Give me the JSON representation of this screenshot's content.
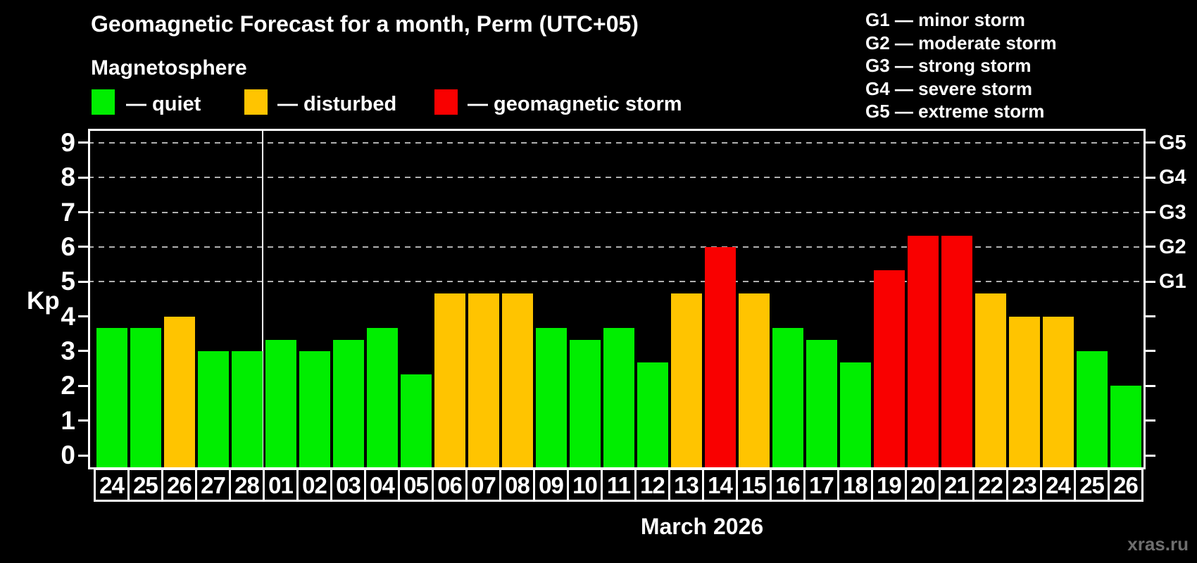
{
  "title": "Geomagnetic Forecast for a month, Perm (UTC+05)",
  "subtitle": "Magnetosphere",
  "legend": {
    "items": [
      {
        "label": "— quiet",
        "status": "quiet"
      },
      {
        "label": "— disturbed",
        "status": "disturbed"
      },
      {
        "label": "— geomagnetic storm",
        "status": "storm"
      }
    ]
  },
  "gscale": {
    "items": [
      "G1 — minor storm",
      "G2 — moderate storm",
      "G3 — strong storm",
      "G4 — severe storm",
      "G5 — extreme storm"
    ]
  },
  "chart_data": {
    "type": "bar",
    "title": "Geomagnetic Forecast for a month, Perm (UTC+05)",
    "ylabel": "Kp",
    "xlabel": "March 2026",
    "ylim": [
      0,
      9
    ],
    "yticks": [
      0,
      1,
      2,
      3,
      4,
      5,
      6,
      7,
      8,
      9
    ],
    "gridlines_kp": [
      5,
      6,
      7,
      8,
      9
    ],
    "grid": "dashed horizontal at Kp 5-9 only",
    "legend_position": "top",
    "right_axis": [
      {
        "kp": 5,
        "label": "G1"
      },
      {
        "kp": 6,
        "label": "G2"
      },
      {
        "kp": 7,
        "label": "G3"
      },
      {
        "kp": 8,
        "label": "G4"
      },
      {
        "kp": 9,
        "label": "G5"
      }
    ],
    "month_separator_index": 5,
    "categories": [
      "24",
      "25",
      "26",
      "27",
      "28",
      "01",
      "02",
      "03",
      "04",
      "05",
      "06",
      "07",
      "08",
      "09",
      "10",
      "11",
      "12",
      "13",
      "14",
      "15",
      "16",
      "17",
      "18",
      "19",
      "20",
      "21",
      "22",
      "23",
      "24",
      "25",
      "26"
    ],
    "values": [
      3.67,
      3.67,
      4.0,
      3.0,
      3.0,
      3.33,
      3.0,
      3.33,
      3.67,
      2.33,
      4.67,
      4.67,
      4.67,
      3.67,
      3.33,
      3.67,
      2.67,
      4.67,
      6.0,
      4.67,
      3.67,
      3.33,
      2.67,
      5.33,
      6.33,
      6.33,
      4.67,
      4.0,
      4.0,
      3.0,
      2.0
    ],
    "statuses": [
      "quiet",
      "quiet",
      "disturbed",
      "quiet",
      "quiet",
      "quiet",
      "quiet",
      "quiet",
      "quiet",
      "quiet",
      "disturbed",
      "disturbed",
      "disturbed",
      "quiet",
      "quiet",
      "quiet",
      "quiet",
      "disturbed",
      "storm",
      "disturbed",
      "quiet",
      "quiet",
      "quiet",
      "storm",
      "storm",
      "storm",
      "disturbed",
      "disturbed",
      "disturbed",
      "quiet",
      "quiet"
    ],
    "status_colors": {
      "quiet": "#00ee00",
      "disturbed": "#ffc400",
      "storm": "#f90000"
    }
  },
  "footer": {
    "caption": "March 2026",
    "watermark": "xras.ru"
  }
}
